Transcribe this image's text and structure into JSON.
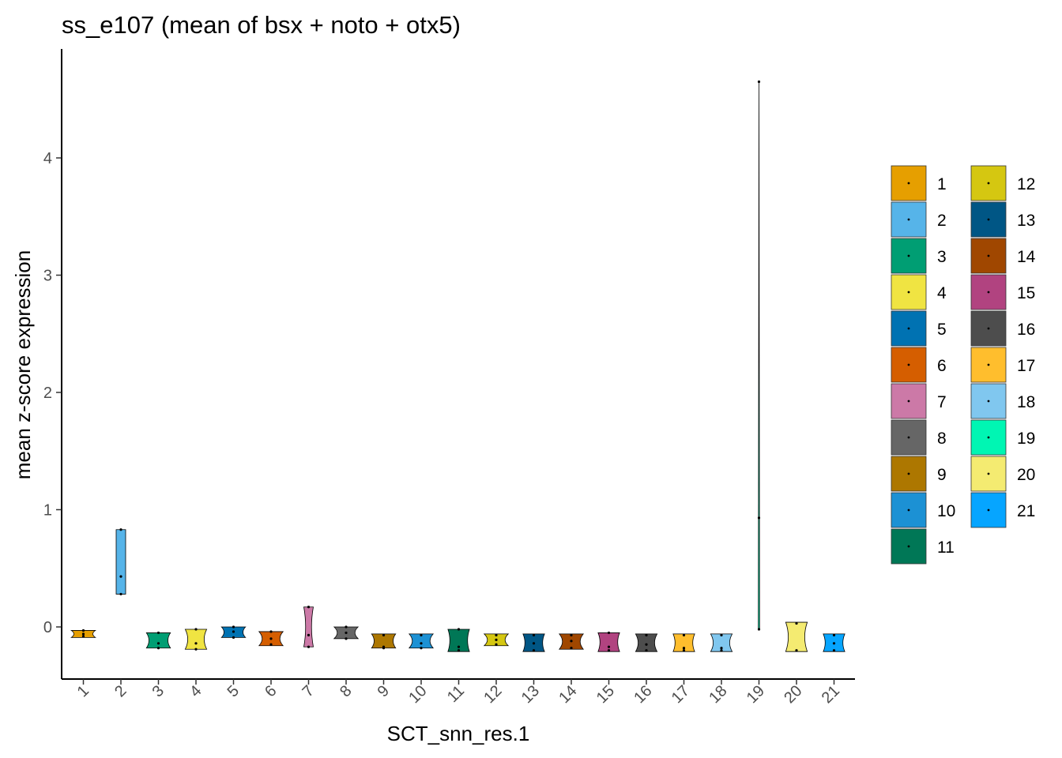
{
  "chart_data": {
    "type": "violin",
    "title": "ss_e107 (mean of bsx + noto + otx5)",
    "xlabel": "SCT_snn_res.1",
    "ylabel": "mean z-score expression",
    "ylim": [
      -0.45,
      4.9
    ],
    "yticks": [
      0,
      1,
      2,
      3,
      4
    ],
    "grid": false,
    "legend_position": "right",
    "categories": [
      "1",
      "2",
      "3",
      "4",
      "5",
      "6",
      "7",
      "8",
      "9",
      "10",
      "11",
      "12",
      "13",
      "14",
      "15",
      "16",
      "17",
      "18",
      "19",
      "20",
      "21"
    ],
    "series": [
      {
        "name": "1",
        "color": "#E69F00",
        "min": -0.09,
        "max": -0.03,
        "points": [
          -0.03,
          -0.06,
          -0.08
        ]
      },
      {
        "name": "2",
        "color": "#56B4E9",
        "min": 0.28,
        "max": 0.83,
        "points": [
          0.83,
          0.43,
          0.28
        ]
      },
      {
        "name": "3",
        "color": "#009E73",
        "min": -0.18,
        "max": -0.05,
        "points": [
          -0.05,
          -0.14,
          -0.18
        ]
      },
      {
        "name": "4",
        "color": "#F0E442",
        "min": -0.19,
        "max": -0.02,
        "points": [
          -0.02,
          -0.14,
          -0.19
        ]
      },
      {
        "name": "5",
        "color": "#0072B2",
        "min": -0.09,
        "max": 0.0,
        "points": [
          0.0,
          -0.04,
          -0.09
        ]
      },
      {
        "name": "6",
        "color": "#D55E00",
        "min": -0.16,
        "max": -0.04,
        "points": [
          -0.04,
          -0.1,
          -0.15
        ]
      },
      {
        "name": "7",
        "color": "#CC79A7",
        "min": -0.17,
        "max": 0.17,
        "points": [
          0.17,
          -0.07,
          -0.17
        ]
      },
      {
        "name": "8",
        "color": "#666666",
        "min": -0.1,
        "max": 0.0,
        "points": [
          0.0,
          -0.05,
          -0.1
        ]
      },
      {
        "name": "9",
        "color": "#AD7700",
        "min": -0.18,
        "max": -0.06,
        "points": [
          -0.07,
          -0.17,
          -0.18
        ]
      },
      {
        "name": "10",
        "color": "#1C91D4",
        "min": -0.18,
        "max": -0.06,
        "points": [
          -0.07,
          -0.14,
          -0.18
        ]
      },
      {
        "name": "11",
        "color": "#007756",
        "min": -0.21,
        "max": -0.02,
        "points": [
          -0.02,
          -0.17,
          -0.2
        ]
      },
      {
        "name": "12",
        "color": "#D5C711",
        "min": -0.16,
        "max": -0.06,
        "points": [
          -0.07,
          -0.11,
          -0.15
        ]
      },
      {
        "name": "13",
        "color": "#005685",
        "min": -0.21,
        "max": -0.06,
        "points": [
          -0.07,
          -0.14,
          -0.2
        ]
      },
      {
        "name": "14",
        "color": "#A04700",
        "min": -0.19,
        "max": -0.06,
        "points": [
          -0.07,
          -0.12,
          -0.18
        ]
      },
      {
        "name": "15",
        "color": "#B14380",
        "min": -0.21,
        "max": -0.05,
        "points": [
          -0.05,
          -0.17,
          -0.2
        ]
      },
      {
        "name": "16",
        "color": "#4D4D4D",
        "min": -0.21,
        "max": -0.06,
        "points": [
          -0.07,
          -0.15,
          -0.2
        ]
      },
      {
        "name": "17",
        "color": "#FFBE2D",
        "min": -0.21,
        "max": -0.06,
        "points": [
          -0.07,
          -0.18,
          -0.2
        ]
      },
      {
        "name": "18",
        "color": "#80C7EF",
        "min": -0.21,
        "max": -0.06,
        "points": [
          -0.07,
          -0.18,
          -0.2
        ]
      },
      {
        "name": "19",
        "color": "#00F6B3",
        "min": -0.02,
        "max": 4.65,
        "points": [
          4.65,
          0.93,
          -0.02
        ]
      },
      {
        "name": "20",
        "color": "#F4EB71",
        "min": -0.21,
        "max": 0.04,
        "points": [
          0.03,
          -0.2
        ]
      },
      {
        "name": "21",
        "color": "#06A5FF",
        "min": -0.21,
        "max": -0.06,
        "points": [
          -0.07,
          -0.14,
          -0.2
        ]
      }
    ]
  }
}
